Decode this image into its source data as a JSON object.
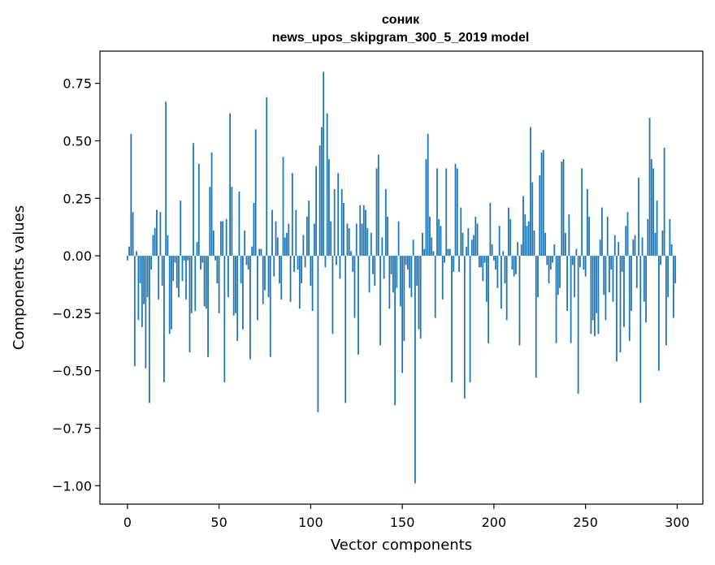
{
  "chart_data": {
    "type": "bar",
    "title_line1": "соник",
    "title_line2": "news_upos_skipgram_300_5_2019 model",
    "xlabel": "Vector components",
    "ylabel": "Components values",
    "xlim": [
      -15,
      314
    ],
    "ylim": [
      -1.08,
      0.89
    ],
    "xticks": [
      0,
      50,
      100,
      150,
      200,
      250,
      300
    ],
    "xtick_labels": [
      "0",
      "50",
      "100",
      "150",
      "200",
      "250",
      "300"
    ],
    "yticks": [
      -1.0,
      -0.75,
      -0.5,
      -0.25,
      0.0,
      0.25,
      0.5,
      0.75
    ],
    "ytick_labels": [
      "−1.00",
      "−0.75",
      "−0.50",
      "−0.25",
      "0.00",
      "0.25",
      "0.50",
      "0.75"
    ],
    "bar_color": "#1f77b4",
    "grid": false,
    "x_start": 0,
    "values": [
      -0.02,
      0.04,
      0.53,
      0.19,
      -0.48,
      0.02,
      -0.28,
      -0.12,
      -0.31,
      -0.21,
      -0.49,
      -0.18,
      -0.64,
      -0.06,
      0.09,
      0.12,
      0.2,
      -0.19,
      0.19,
      -0.13,
      -0.55,
      0.67,
      0.09,
      -0.34,
      -0.32,
      -0.11,
      -0.03,
      -0.14,
      -0.18,
      0.24,
      -0.11,
      -0.02,
      -0.19,
      -0.02,
      -0.42,
      -0.25,
      0.49,
      -0.24,
      0.06,
      0.4,
      -0.06,
      -0.03,
      -0.22,
      -0.23,
      -0.44,
      0.3,
      0.45,
      0.11,
      -0.02,
      -0.12,
      -0.25,
      0.15,
      0.15,
      -0.55,
      0.16,
      -0.18,
      0.62,
      0.3,
      -0.26,
      -0.25,
      -0.37,
      0.28,
      -0.12,
      -0.32,
      0.11,
      -0.04,
      -0.06,
      -0.45,
      0.04,
      0.23,
      0.55,
      -0.28,
      0.03,
      0.03,
      -0.21,
      -0.15,
      0.69,
      -0.18,
      -0.44,
      0.2,
      -0.09,
      0.15,
      0.08,
      -0.12,
      -0.19,
      0.43,
      0.08,
      0.1,
      0.14,
      -0.2,
      0.36,
      -0.07,
      0.2,
      -0.06,
      -0.23,
      -0.12,
      0.09,
      -0.05,
      0.17,
      0.24,
      -0.13,
      -0.24,
      0.14,
      0.39,
      -0.68,
      0.48,
      0.56,
      0.8,
      -0.05,
      0.62,
      0.42,
      0.15,
      -0.34,
      0.29,
      -0.04,
      0.36,
      -0.1,
      0.29,
      0.23,
      -0.64,
      0.14,
      0.12,
      0.02,
      -0.07,
      -0.27,
      0.14,
      -0.43,
      0.22,
      0.14,
      0.22,
      0.2,
      0.12,
      -0.16,
      0.1,
      -0.08,
      -0.13,
      0.38,
      0.44,
      -0.39,
      0.08,
      -0.1,
      0.29,
      0.17,
      -0.23,
      -0.08,
      -0.16,
      -0.65,
      -0.14,
      0.15,
      -0.22,
      -0.51,
      -0.37,
      -0.04,
      -0.06,
      -0.14,
      -0.18,
      0.07,
      -0.99,
      -0.13,
      -0.32,
      -0.36,
      0.1,
      0.03,
      0.42,
      0.53,
      0.17,
      0.08,
      0.02,
      -0.27,
      0.38,
      0.16,
      0.13,
      -0.19,
      -0.03,
      0.38,
      0.03,
      0.03,
      -0.55,
      -0.07,
      0.4,
      0.38,
      -0.07,
      0.21,
      0.1,
      -0.62,
      0.04,
      0.12,
      -0.55,
      0.07,
      0.09,
      0.17,
      0.14,
      -0.05,
      -0.05,
      -0.11,
      -0.03,
      -0.2,
      -0.38,
      0.23,
      0.05,
      -0.02,
      -0.06,
      -0.14,
      0.13,
      -0.23,
      0.02,
      -0.12,
      -0.28,
      0.21,
      0.16,
      -0.06,
      -0.09,
      -0.08,
      0.06,
      -0.39,
      0.05,
      0.26,
      0.18,
      0.13,
      0.15,
      0.56,
      0.32,
      0.11,
      -0.53,
      -0.18,
      0.35,
      0.45,
      0.46,
      0.1,
      -0.04,
      -0.12,
      -0.06,
      -0.03,
      0.05,
      -0.38,
      -0.17,
      -0.14,
      0.41,
      0.42,
      0.1,
      -0.24,
      0.18,
      -0.38,
      -0.04,
      -0.18,
      0.03,
      -0.6,
      -0.05,
      0.38,
      -0.06,
      -0.09,
      0.29,
      0.17,
      -0.34,
      -0.28,
      -0.35,
      -0.25,
      -0.34,
      0.07,
      0.21,
      -0.17,
      -0.28,
      0.17,
      -0.16,
      -0.06,
      -0.2,
      0.09,
      -0.46,
      0.06,
      -0.42,
      -0.07,
      -0.31,
      0.13,
      0.19,
      -0.37,
      -0.24,
      0.07,
      0.09,
      -0.14,
      0.34,
      -0.64,
      0.08,
      -0.2,
      -0.29,
      0.16,
      0.6,
      0.42,
      0.38,
      0.1,
      0.24,
      -0.5,
      -0.04,
      0.11,
      0.47,
      -0.39,
      -0.18,
      0.16,
      0.05,
      -0.27,
      -0.12
    ]
  }
}
